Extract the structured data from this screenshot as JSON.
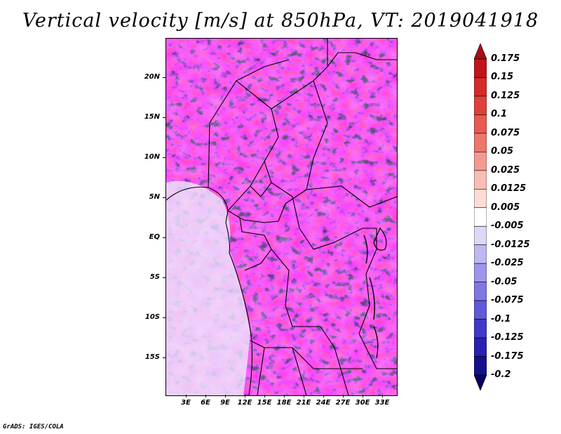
{
  "title": "Vertical velocity [m/s] at 850hPa, VT: 2019041918",
  "credit": "GrADS: IGES/COLA",
  "map": {
    "lat_labels": [
      "20N",
      "15N",
      "10N",
      "5N",
      "EQ",
      "5S",
      "10S",
      "15S"
    ],
    "lon_labels": [
      "3E",
      "6E",
      "9E",
      "12E",
      "15E",
      "18E",
      "21E",
      "24E",
      "27E",
      "30E",
      "33E"
    ],
    "lat_range": [
      -19.5,
      24.5
    ],
    "lon_range": [
      0,
      35
    ]
  },
  "colorbar": {
    "labels": [
      "0.175",
      "0.15",
      "0.125",
      "0.1",
      "0.075",
      "0.05",
      "0.025",
      "0.0125",
      "0.005",
      "-0.005",
      "-0.0125",
      "-0.025",
      "-0.05",
      "-0.075",
      "-0.1",
      "-0.125",
      "-0.175",
      "-0.2"
    ],
    "colors": [
      "#a50f15",
      "#c0151c",
      "#d42a28",
      "#e0403a",
      "#e85a52",
      "#ee776c",
      "#f49a8e",
      "#f8bdb4",
      "#fbdcd7",
      "#ffffff",
      "#dcd9f8",
      "#bdb8f0",
      "#9d96ea",
      "#7f77e2",
      "#6159d8",
      "#4238c8",
      "#2a1fb0",
      "#14108a",
      "#0a0060"
    ]
  }
}
